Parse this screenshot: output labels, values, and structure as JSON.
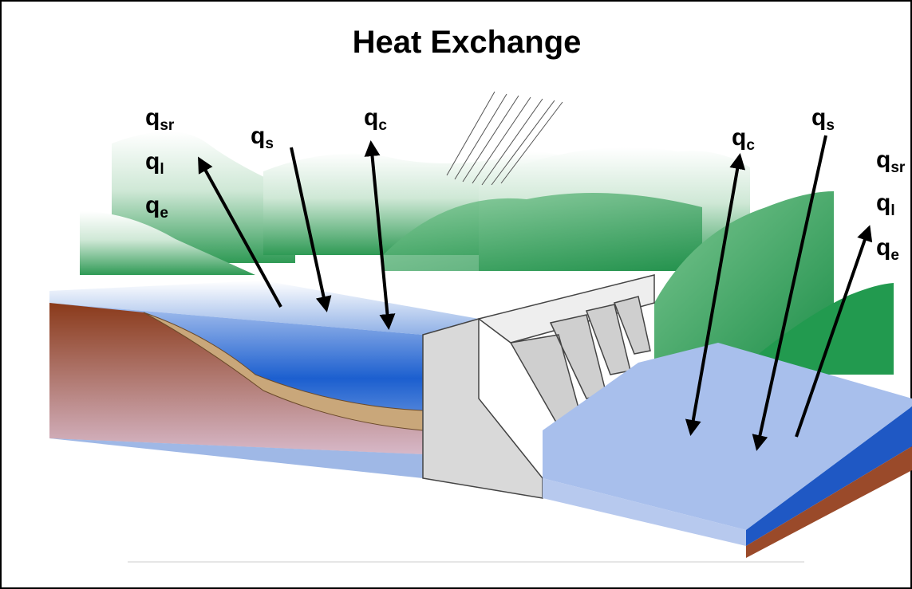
{
  "title": "Heat Exchange",
  "labels": [
    {
      "base": "q",
      "sub": "sr"
    },
    {
      "base": "q",
      "sub": "l"
    },
    {
      "base": "q",
      "sub": "e"
    },
    {
      "base": "q",
      "sub": "s"
    },
    {
      "base": "q",
      "sub": "c"
    },
    {
      "base": "q",
      "sub": "c"
    },
    {
      "base": "q",
      "sub": "s"
    },
    {
      "base": "q",
      "sub": "sr"
    },
    {
      "base": "q",
      "sub": "l"
    },
    {
      "base": "q",
      "sub": "e"
    }
  ]
}
